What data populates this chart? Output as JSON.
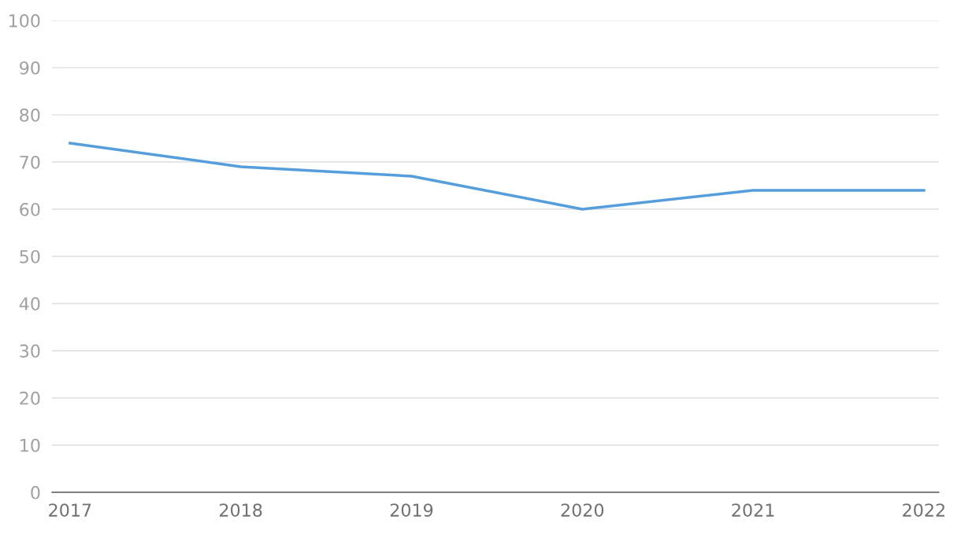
{
  "chart_data": {
    "type": "line",
    "categories": [
      "2017",
      "2018",
      "2019",
      "2020",
      "2021",
      "2022"
    ],
    "series": [
      {
        "color": "#559ddb",
        "values": [
          74,
          69,
          67,
          60,
          64,
          64
        ]
      }
    ],
    "ylim": [
      0,
      100
    ],
    "yticks": [
      0,
      10,
      20,
      30,
      40,
      50,
      60,
      70,
      80,
      90,
      100
    ],
    "grid": "y",
    "legend": false,
    "marker": "none",
    "line_style": "solid"
  }
}
